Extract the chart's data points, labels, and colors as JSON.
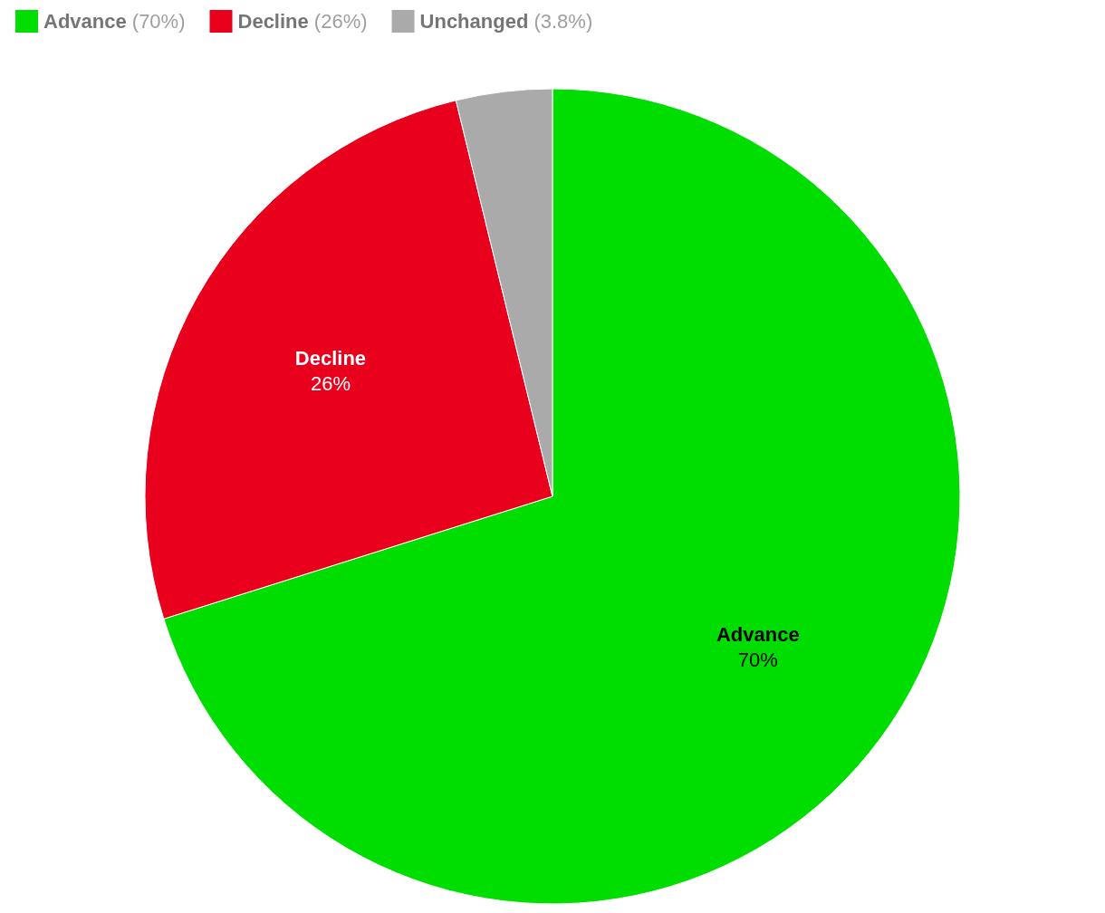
{
  "chart_data": {
    "type": "pie",
    "categories": [
      "Advance",
      "Decline",
      "Unchanged"
    ],
    "values": [
      70,
      26,
      3.8
    ],
    "value_labels": [
      "70%",
      "26%",
      null
    ],
    "annotations": [
      "(70%)",
      "(26%)",
      "(3.8%)"
    ],
    "colors": [
      "#00dd00",
      "#e8001c",
      "#aaaaaa"
    ],
    "legend": "top left"
  }
}
